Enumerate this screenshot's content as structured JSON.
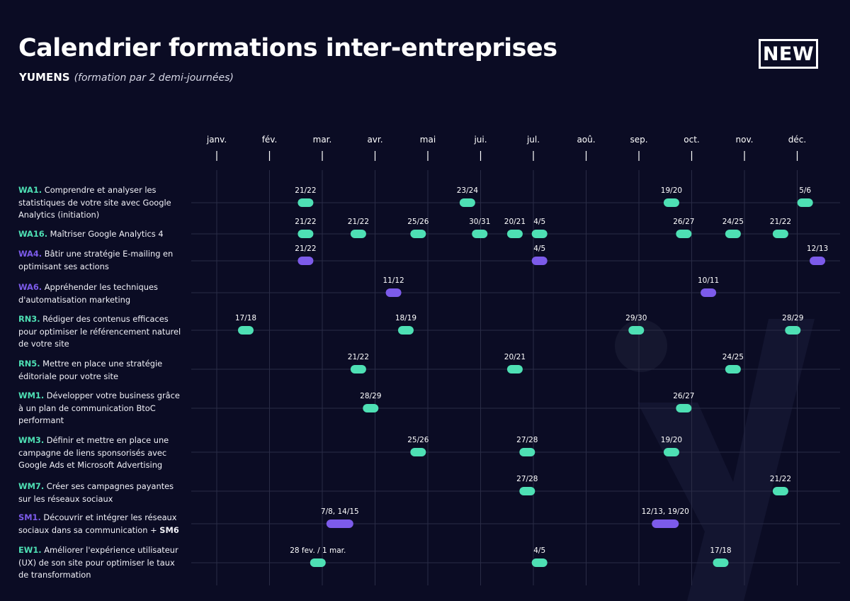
{
  "header": {
    "title": "Calendrier formations inter-entreprises",
    "brand": "YUMENS",
    "subtitle_note": "(formation par 2 demi-journées)",
    "badge": "NEW"
  },
  "colors": {
    "background": "#0b0c24",
    "green": "#4ee0b4",
    "purple": "#7c5bea",
    "grid": "#2a2c46"
  },
  "chart_data": {
    "type": "timeline",
    "months": [
      "janv.",
      "fév.",
      "mar.",
      "avr.",
      "mai",
      "jui.",
      "jul.",
      "aoû.",
      "sep.",
      "oct.",
      "nov.",
      "déc."
    ],
    "rows": [
      {
        "code": "WA1.",
        "text": "Comprendre et analyser les statistiques de votre site avec Google Analytics (initiation)",
        "color": "green",
        "sessions": [
          {
            "month": 2,
            "label": "21/22",
            "day": 21.5,
            "span": 1
          },
          {
            "month": 5,
            "label": "23/24",
            "day": 23.5,
            "span": 1
          },
          {
            "month": 9,
            "label": "19/20",
            "day": 19.5,
            "span": 1
          },
          {
            "month": 12,
            "label": "5/6",
            "day": 5.5,
            "span": 1
          }
        ]
      },
      {
        "code": "WA16.",
        "text": "Maîtriser Google Analytics 4",
        "color": "green",
        "sessions": [
          {
            "month": 2,
            "label": "21/22",
            "day": 21.5,
            "span": 1
          },
          {
            "month": 3,
            "label": "21/22",
            "day": 21.5,
            "span": 1
          },
          {
            "month": 4,
            "label": "25/26",
            "day": 25.5,
            "span": 1
          },
          {
            "month": 5,
            "label": "30/31",
            "day": 30.5,
            "span": 1
          },
          {
            "month": 6,
            "label": "20/21",
            "day": 20.5,
            "span": 1
          },
          {
            "month": 7,
            "label": "4/5",
            "day": 4.5,
            "span": 1
          },
          {
            "month": 9,
            "label": "26/27",
            "day": 26.5,
            "span": 1
          },
          {
            "month": 10,
            "label": "24/25",
            "day": 24.5,
            "span": 1
          },
          {
            "month": 11,
            "label": "21/22",
            "day": 21.5,
            "span": 1
          }
        ]
      },
      {
        "code": "WA4.",
        "text": "Bâtir une stratégie E-mailing en optimisant ses actions",
        "color": "purple",
        "sessions": [
          {
            "month": 2,
            "label": "21/22",
            "day": 21.5,
            "span": 1
          },
          {
            "month": 7,
            "label": "4/5",
            "day": 4.5,
            "span": 1
          },
          {
            "month": 12,
            "label": "12/13",
            "day": 12.5,
            "span": 1
          }
        ]
      },
      {
        "code": "WA6.",
        "text": "Appréhender les techniques d'automatisation marketing",
        "color": "purple",
        "sessions": [
          {
            "month": 4,
            "label": "11/12",
            "day": 11.5,
            "span": 1
          },
          {
            "month": 10,
            "label": "10/11",
            "day": 10.5,
            "span": 1
          }
        ]
      },
      {
        "code": "RN3.",
        "text": "Rédiger des contenus efficaces pour optimiser le référencement naturel de votre site",
        "color": "green",
        "sessions": [
          {
            "month": 1,
            "label": "17/18",
            "day": 17.5,
            "span": 1
          },
          {
            "month": 4,
            "label": "18/19",
            "day": 18.5,
            "span": 1
          },
          {
            "month": 8,
            "label": "29/30",
            "day": 29.5,
            "span": 1
          },
          {
            "month": 11,
            "label": "28/29",
            "day": 28.5,
            "span": 1
          }
        ]
      },
      {
        "code": "RN5.",
        "text": "Mettre en place une stratégie éditoriale pour votre site",
        "color": "green",
        "sessions": [
          {
            "month": 3,
            "label": "21/22",
            "day": 21.5,
            "span": 1
          },
          {
            "month": 6,
            "label": "20/21",
            "day": 20.5,
            "span": 1
          },
          {
            "month": 10,
            "label": "24/25",
            "day": 24.5,
            "span": 1
          }
        ]
      },
      {
        "code": "WM1.",
        "text": "Développer votre business grâce à un plan de communication BtoC performant",
        "color": "green",
        "sessions": [
          {
            "month": 3,
            "label": "28/29",
            "day": 28.5,
            "span": 1
          },
          {
            "month": 9,
            "label": "26/27",
            "day": 26.5,
            "span": 1
          }
        ]
      },
      {
        "code": "WM3.",
        "text": "Définir et mettre en place une campagne de liens sponsorisés avec Google Ads et Microsoft Advertising",
        "color": "green",
        "sessions": [
          {
            "month": 4,
            "label": "25/26",
            "day": 25.5,
            "span": 1
          },
          {
            "month": 6,
            "label": "27/28",
            "day": 27.5,
            "span": 1
          },
          {
            "month": 9,
            "label": "19/20",
            "day": 19.5,
            "span": 1
          }
        ]
      },
      {
        "code": "WM7.",
        "text": "Créer ses campagnes payantes sur les réseaux sociaux",
        "color": "green",
        "sessions": [
          {
            "month": 6,
            "label": "27/28",
            "day": 27.5,
            "span": 1
          },
          {
            "month": 11,
            "label": "21/22",
            "day": 21.5,
            "span": 1
          }
        ]
      },
      {
        "code": "SM1.",
        "text": "Découvrir et intégrer les réseaux sociaux dans sa communication + ",
        "text_bold": "SM6",
        "color": "purple",
        "sessions": [
          {
            "month": 3,
            "label": "7/8, 14/15",
            "day": 11,
            "span": 2
          },
          {
            "month": 9,
            "label": "12/13, 19/20",
            "day": 16,
            "span": 2
          }
        ]
      },
      {
        "code": "EW1.",
        "text": "Améliorer l'expérience utilisateur (UX) de son site pour optimiser le taux de transformation",
        "color": "green",
        "sessions": [
          {
            "month": 2,
            "label": "28 fev. / 1 mar.",
            "day": 28.5,
            "span": 1
          },
          {
            "month": 7,
            "label": "4/5",
            "day": 4.5,
            "span": 1
          },
          {
            "month": 10,
            "label": "17/18",
            "day": 17.5,
            "span": 1
          }
        ]
      }
    ]
  }
}
